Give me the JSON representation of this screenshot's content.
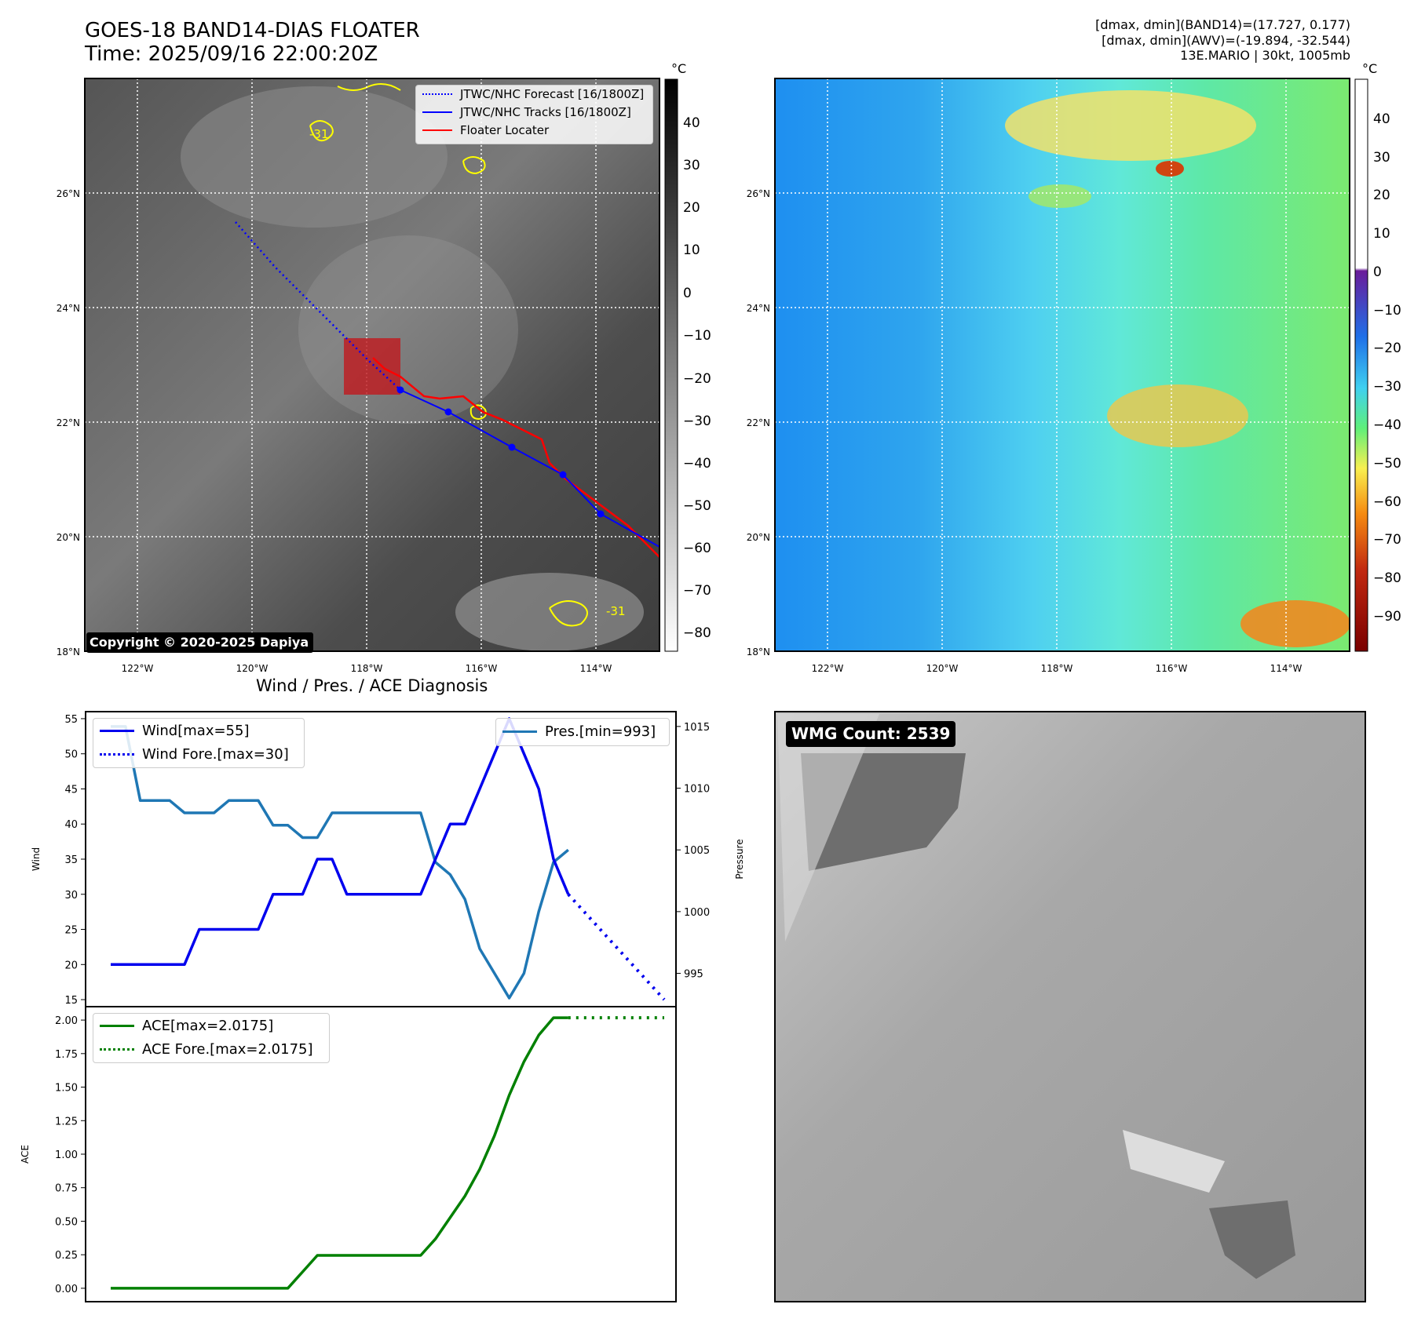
{
  "header": {
    "title_line1": "GOES-18 BAND14-DIAS FLOATER",
    "title_line2": "Time: 2025/09/16 22:00:20Z",
    "info_line1": "[dmax, dmin](BAND14)=(17.727, 0.177)",
    "info_line2": "[dmax, dmin](AWV)=(-19.894, -32.544)",
    "info_line3": "13E.MARIO | 30kt, 1005mb"
  },
  "map_ir": {
    "lat_labels": [
      "26°N",
      "24°N",
      "22°N",
      "20°N",
      "18°N"
    ],
    "lon_labels": [
      "122°W",
      "120°W",
      "118°W",
      "116°W",
      "114°W"
    ],
    "contour_label": "-31",
    "legend": {
      "forecast": "JTWC/NHC Forecast [16/1800Z]",
      "tracks": "JTWC/NHC Tracks [16/1800Z]",
      "locater": "Floater Locater"
    },
    "copyright": "Copyright © 2020-2025 Dapiya",
    "colorbar": {
      "unit": "°C",
      "ticks": [
        "40",
        "30",
        "20",
        "10",
        "0",
        "−10",
        "−20",
        "−30",
        "−40",
        "−50",
        "−60",
        "−70",
        "−80"
      ]
    },
    "colors": {
      "track": "#0000ff",
      "locater": "#ff0000",
      "contour": "#ffff00",
      "box": "#c0191e"
    }
  },
  "map_wv": {
    "lat_labels": [
      "26°N",
      "24°N",
      "22°N",
      "20°N",
      "18°N"
    ],
    "lon_labels": [
      "122°W",
      "120°W",
      "118°W",
      "116°W",
      "114°W"
    ],
    "colorbar": {
      "unit": "°C",
      "ticks": [
        "40",
        "30",
        "20",
        "10",
        "0",
        "−10",
        "−20",
        "−30",
        "−40",
        "−50",
        "−60",
        "−70",
        "−80",
        "−90"
      ]
    }
  },
  "diagnosis": {
    "title": "Wind / Pres. / ACE Diagnosis",
    "wind_axis_label": "Wind",
    "pressure_axis_label": "Pressure",
    "ace_axis_label": "ACE",
    "wind_ticks": [
      "55",
      "50",
      "45",
      "40",
      "35",
      "30",
      "25",
      "20",
      "15"
    ],
    "pressure_ticks": [
      "1015",
      "1010",
      "1005",
      "1000",
      "995"
    ],
    "ace_ticks": [
      "2.00",
      "1.75",
      "1.50",
      "1.25",
      "1.00",
      "0.75",
      "0.50",
      "0.25",
      "0.00"
    ],
    "legend_wind": "Wind[max=55]",
    "legend_wind_fore": "Wind Fore.[max=30]",
    "legend_pres": "Pres.[min=993]",
    "legend_ace": "ACE[max=2.0175]",
    "legend_ace_fore": "ACE Fore.[max=2.0175]"
  },
  "wmg": {
    "label": "WMG Count: 2539"
  },
  "chart_data": [
    {
      "type": "line",
      "title": "Wind / Pres. / ACE Diagnosis",
      "ylabel": "Wind",
      "y2label": "Pressure",
      "ylim": [
        14,
        56
      ],
      "y2lim": [
        992.3,
        1016.2
      ],
      "series": [
        {
          "name": "Wind[max=55]",
          "axis": "left",
          "x": [
            0,
            1,
            2,
            3,
            4,
            5,
            6,
            7,
            8,
            9,
            10,
            11,
            12,
            13,
            14,
            15,
            16,
            17,
            18,
            19,
            20,
            21,
            22,
            23,
            24,
            25,
            26,
            27,
            28,
            29,
            30,
            31
          ],
          "values": [
            20,
            20,
            20,
            20,
            20,
            20,
            25,
            25,
            25,
            25,
            25,
            30,
            30,
            30,
            35,
            35,
            30,
            30,
            30,
            30,
            30,
            30,
            35,
            40,
            40,
            45,
            50,
            55,
            50,
            45,
            35,
            30
          ]
        },
        {
          "name": "Wind Fore.[max=30]",
          "axis": "left",
          "x": [
            31,
            37.5
          ],
          "values": [
            30,
            15
          ]
        },
        {
          "name": "Pres.[min=993]",
          "axis": "right",
          "x": [
            0,
            1,
            2,
            3,
            4,
            5,
            6,
            7,
            8,
            9,
            10,
            11,
            12,
            13,
            14,
            15,
            16,
            17,
            18,
            19,
            20,
            21,
            22,
            23,
            24,
            25,
            26,
            27,
            28,
            29,
            30,
            31
          ],
          "values": [
            1015,
            1015,
            1009,
            1009,
            1009,
            1008,
            1008,
            1008,
            1009,
            1009,
            1009,
            1007,
            1007,
            1006,
            1006,
            1008,
            1008,
            1008,
            1008,
            1008,
            1008,
            1008,
            1004,
            1003,
            1001,
            997,
            995,
            993,
            995,
            1000,
            1004,
            1005
          ]
        }
      ]
    },
    {
      "type": "line",
      "ylabel": "ACE",
      "ylim": [
        -0.1,
        2.1
      ],
      "series": [
        {
          "name": "ACE[max=2.0175]",
          "x": [
            0,
            1,
            2,
            3,
            4,
            5,
            6,
            7,
            8,
            9,
            10,
            11,
            12,
            13,
            14,
            15,
            16,
            17,
            18,
            19,
            20,
            21,
            22,
            23,
            24,
            25,
            26,
            27,
            28,
            29,
            30,
            31
          ],
          "values": [
            0,
            0,
            0,
            0,
            0,
            0,
            0,
            0,
            0,
            0,
            0,
            0,
            0,
            0.1225,
            0.245,
            0.245,
            0.245,
            0.245,
            0.245,
            0.245,
            0.245,
            0.245,
            0.3675,
            0.5275,
            0.6875,
            0.8875,
            1.1375,
            1.44,
            1.69,
            1.8875,
            2.0175,
            2.0175
          ]
        },
        {
          "name": "ACE Fore.[max=2.0175]",
          "x": [
            31,
            37.5
          ],
          "values": [
            2.0175,
            2.0175
          ]
        }
      ]
    }
  ]
}
